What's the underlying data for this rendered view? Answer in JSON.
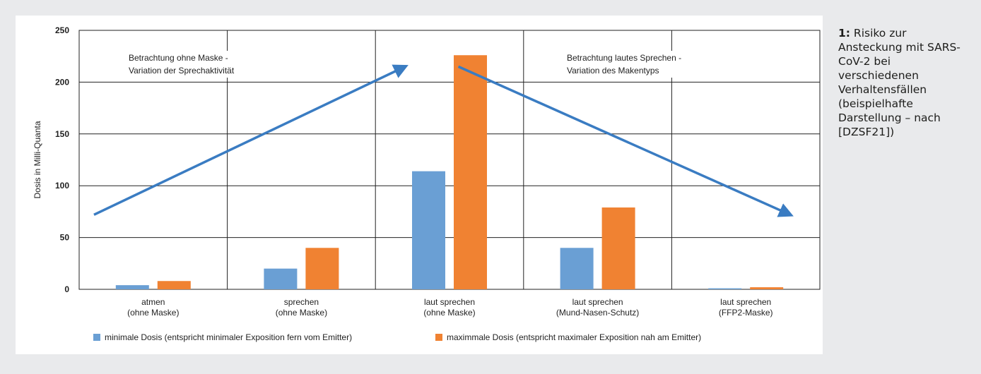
{
  "caption": {
    "number": "1:",
    "text": "Risiko zur Ansteckung mit SARS-CoV-2 bei verschiedenen Verhaltensfällen (beispielhafte Darstellung – nach [DZSF21])"
  },
  "chart_data": {
    "type": "bar",
    "ylabel": "Dosis in Milli-Quanta",
    "ylim": [
      0,
      250
    ],
    "yticks": [
      0,
      50,
      100,
      150,
      200,
      250
    ],
    "categories": [
      [
        "atmen",
        "(ohne Maske)"
      ],
      [
        "sprechen",
        "(ohne Maske)"
      ],
      [
        "laut sprechen",
        "(ohne Maske)"
      ],
      [
        "laut sprechen",
        "(Mund-Nasen-Schutz)"
      ],
      [
        "laut sprechen",
        "(FFP2-Maske)"
      ]
    ],
    "series": [
      {
        "name": "minimale Dosis (entspricht minimaler Exposition fern vom Emitter)",
        "color": "#6a9fd4",
        "values": [
          4,
          20,
          114,
          40,
          1
        ]
      },
      {
        "name": "maximmale Dosis (entspricht maximaler Exposition nah am Emitter)",
        "color": "#f08232",
        "values": [
          8,
          40,
          226,
          79,
          2
        ]
      }
    ],
    "grid": true,
    "legend_position": "bottom",
    "annotations": [
      {
        "lines": [
          "Betrachtung ohne Maske -",
          "Variation der Sprechaktivität"
        ]
      },
      {
        "lines": [
          "Betrachtung lautes Sprechen -",
          "Variation des Makentyps"
        ]
      }
    ],
    "arrows": [
      {
        "from": [
          0.1,
          72
        ],
        "to": [
          2.2,
          215
        ],
        "color": "#3a7cc2"
      },
      {
        "from": [
          2.56,
          215
        ],
        "to": [
          4.8,
          72
        ],
        "color": "#3a7cc2"
      }
    ]
  }
}
